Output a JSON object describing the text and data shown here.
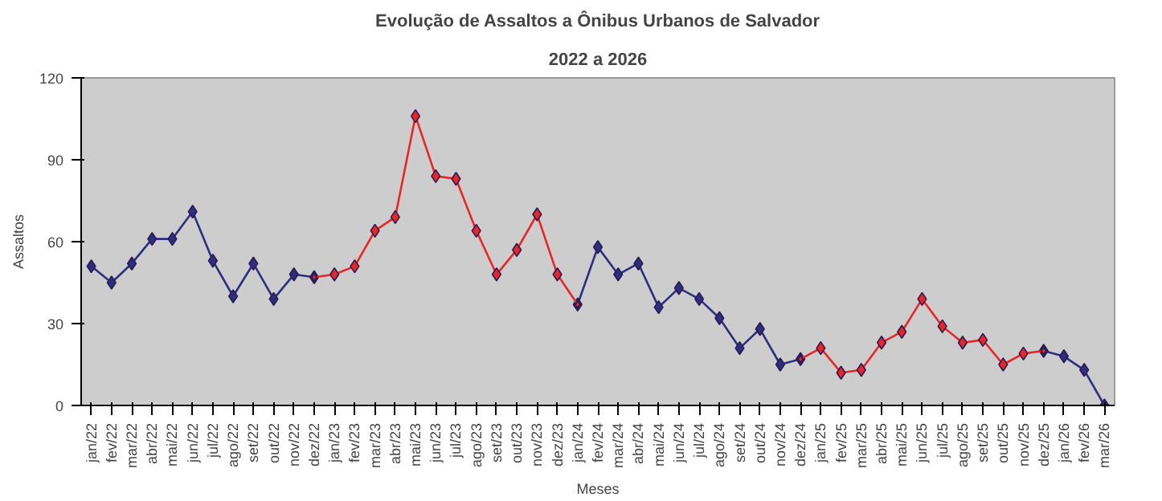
{
  "chart_data": {
    "type": "line",
    "title": "Evolução de Assaltos a Ônibus Urbanos de Salvador",
    "subtitle": "2022 a 2026",
    "xlabel": "Meses",
    "ylabel": "Assaltos",
    "categories": [
      "jan/22",
      "fev/22",
      "mar/22",
      "abr/22",
      "mai/22",
      "jun/22",
      "jul/22",
      "ago/22",
      "set/22",
      "out/22",
      "nov/22",
      "dez/22",
      "jan/23",
      "fev/23",
      "mar/23",
      "abr/23",
      "mai/23",
      "jun/23",
      "jul/23",
      "ago/23",
      "set/23",
      "out/23",
      "nov/23",
      "dez/23",
      "jan/24",
      "fev/24",
      "mar/24",
      "abr/24",
      "mai/24",
      "jun/24",
      "jul/24",
      "ago/24",
      "set/24",
      "out/24",
      "nov/24",
      "dez/24",
      "jan/25",
      "fev/25",
      "mar/25",
      "abr/25",
      "mai/25",
      "jun/25",
      "jul/25",
      "ago/25",
      "set/25",
      "out/25",
      "nov/25",
      "dez/25",
      "jan/26",
      "fev/26",
      "mar/26"
    ],
    "series": [
      {
        "color": "#2e2e80",
        "values": [
          51,
          45,
          52,
          61,
          61,
          71,
          53,
          40,
          52,
          39,
          48,
          47,
          null,
          null,
          null,
          null,
          null,
          null,
          null,
          null,
          null,
          null,
          null,
          null,
          37,
          58,
          48,
          52,
          36,
          43,
          39,
          32,
          21,
          28,
          15,
          17,
          null,
          null,
          null,
          null,
          null,
          null,
          null,
          null,
          null,
          null,
          null,
          20,
          18,
          13,
          0
        ]
      },
      {
        "color": "#e8262a",
        "values": [
          null,
          null,
          null,
          null,
          null,
          null,
          null,
          null,
          null,
          null,
          null,
          47,
          48,
          51,
          64,
          69,
          106,
          84,
          83,
          64,
          48,
          57,
          70,
          48,
          37,
          null,
          null,
          null,
          null,
          null,
          null,
          null,
          null,
          null,
          null,
          17,
          21,
          12,
          13,
          23,
          27,
          39,
          29,
          23,
          24,
          15,
          19,
          20,
          null,
          null,
          null
        ]
      }
    ],
    "ylim": [
      0,
      120
    ],
    "yticks": [
      0,
      30,
      60,
      90,
      120
    ],
    "grid": false,
    "marker": "diamond",
    "line_style": "solid"
  }
}
